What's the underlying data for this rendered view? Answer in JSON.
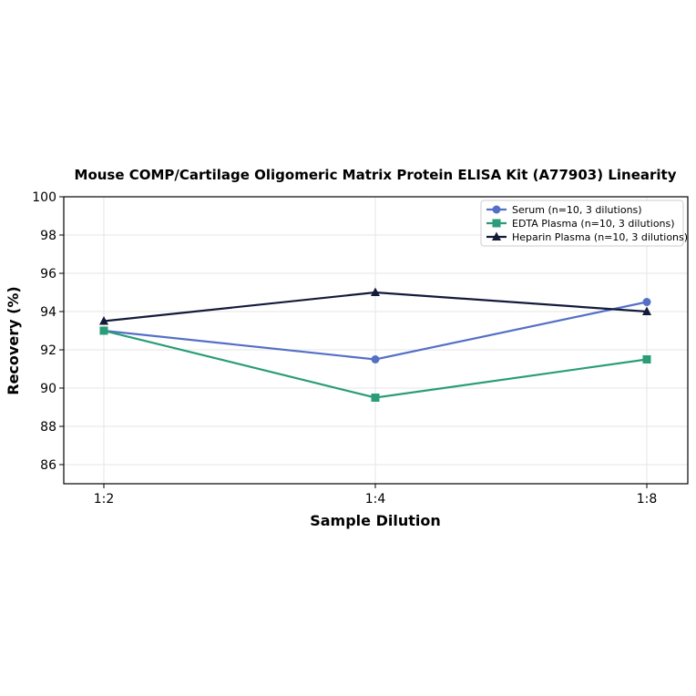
{
  "chart_data": {
    "type": "line",
    "title": "Mouse COMP/Cartilage Oligomeric Matrix Protein ELISA Kit (A77903) Linearity",
    "xlabel": "Sample Dilution",
    "ylabel": "Recovery (%)",
    "categories": [
      "1:2",
      "1:4",
      "1:8"
    ],
    "ylim": [
      85,
      100
    ],
    "yticks": [
      86,
      88,
      90,
      92,
      94,
      96,
      98,
      100
    ],
    "grid": true,
    "legend_position": "top-right",
    "series": [
      {
        "name": "Serum (n=10, 3 dilutions)",
        "values": [
          93.0,
          91.5,
          94.5
        ],
        "color": "#5470c6",
        "marker": "circle"
      },
      {
        "name": "EDTA Plasma (n=10, 3 dilutions)",
        "values": [
          93.0,
          89.5,
          91.5
        ],
        "color": "#2a9d78",
        "marker": "square"
      },
      {
        "name": "Heparin Plasma (n=10, 3 dilutions)",
        "values": [
          93.5,
          95.0,
          94.0
        ],
        "color": "#141b3a",
        "marker": "triangle"
      }
    ]
  }
}
